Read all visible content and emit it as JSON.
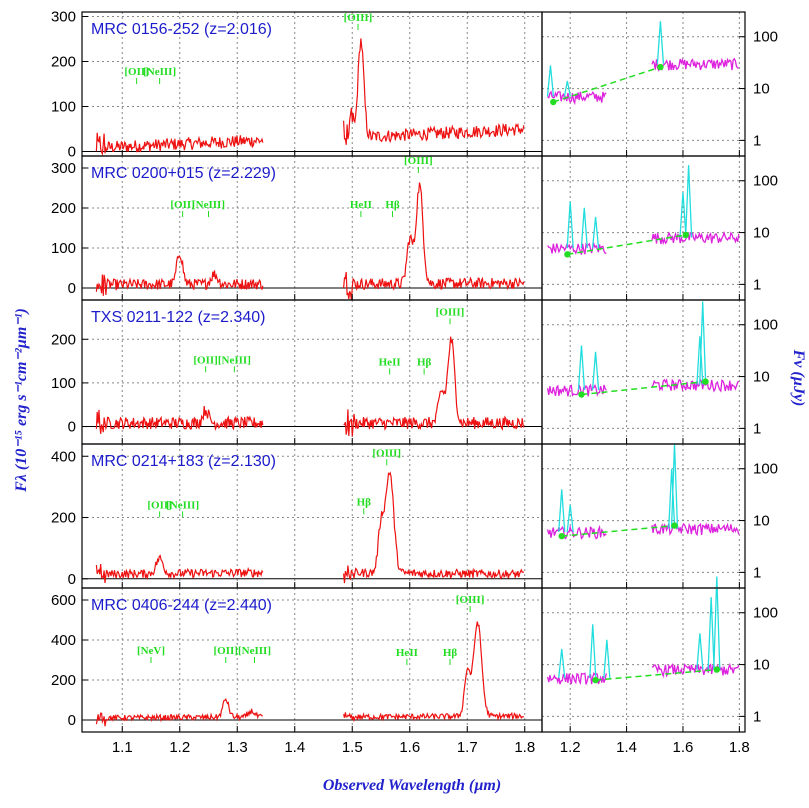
{
  "chart_data": {
    "type": "line",
    "xlabel": "Observed Wavelength (µm)",
    "ylabel_left": "Fλ (10⁻¹⁵ erg s⁻¹cm⁻²µm⁻¹)",
    "ylabel_right": "Fν (µJy)",
    "spectrum_color": "#ee1111",
    "line_label_color": "#22dd22",
    "title_color": "#1c1ccc",
    "sed_colors": {
      "continuum": "#dd22dd",
      "lines": "#22dddd",
      "points": "#22dd22",
      "fit": "#22dd22"
    },
    "main_x_ticks": [
      "1.1",
      "1.2",
      "1.3",
      "1.4",
      "1.5",
      "1.6",
      "1.7",
      "1.8"
    ],
    "sed_x_ticks": [
      "1.2",
      "1.4",
      "1.6",
      "1.8"
    ],
    "sed_y_ticks": [
      "1",
      "10",
      "100"
    ],
    "main_xlim": [
      1.03,
      1.83
    ],
    "sed_xlim": [
      1.1,
      1.82
    ],
    "sed_ylog": true,
    "grid": true,
    "panels": [
      {
        "name": "MRC 0156-252  (z=2.016)",
        "z": 2.016,
        "ylim": [
          -10,
          310
        ],
        "yticks": [
          "0",
          "100",
          "200",
          "300"
        ],
        "lines": [
          {
            "label": "[OII]",
            "x": 1.125,
            "y": 170
          },
          {
            "label": "[NeIII]",
            "x": 1.165,
            "y": 170
          },
          {
            "label": "[OIII]",
            "x": 1.51,
            "y": 290
          }
        ],
        "peaks": [
          {
            "x": 1.515,
            "height": 215,
            "width": 0.005
          },
          {
            "x": 1.498,
            "height": 30,
            "width": 0.004
          }
        ],
        "continuum": [
          {
            "x0": 1.055,
            "x1": 1.345,
            "y0": 8,
            "y1": 25
          },
          {
            "x0": 1.485,
            "x1": 1.8,
            "y0": 30,
            "y1": 50
          }
        ],
        "sed": {
          "fit": [
            [
              1.14,
              5.5
            ],
            [
              1.52,
              26
            ]
          ],
          "points": [
            [
              1.14,
              5.5
            ],
            [
              1.52,
              26
            ]
          ],
          "seg1": [
            1.12,
            1.33
          ],
          "seg2": [
            1.49,
            1.8
          ],
          "level1": 7,
          "level2": 30,
          "lines": [
            [
              1.13,
              28
            ],
            [
              1.19,
              14
            ],
            [
              1.52,
              200
            ]
          ]
        }
      },
      {
        "name": "MRC 0200+015  (z=2.229)",
        "z": 2.229,
        "ylim": [
          -30,
          330
        ],
        "yticks": [
          "0",
          "100",
          "200",
          "300"
        ],
        "lines": [
          {
            "label": "[OII]",
            "x": 1.205,
            "y": 200
          },
          {
            "label": "[NeIII]",
            "x": 1.25,
            "y": 200
          },
          {
            "label": "HeII",
            "x": 1.515,
            "y": 200
          },
          {
            "label": "Hβ",
            "x": 1.57,
            "y": 200
          },
          {
            "label": "[OIII]",
            "x": 1.615,
            "y": 310
          }
        ],
        "peaks": [
          {
            "x": 1.2,
            "height": 80,
            "width": 0.005
          },
          {
            "x": 1.26,
            "height": 25,
            "width": 0.006
          },
          {
            "x": 1.6,
            "height": 110,
            "width": 0.005
          },
          {
            "x": 1.617,
            "height": 245,
            "width": 0.006
          }
        ],
        "continuum": [
          {
            "x0": 1.055,
            "x1": 1.345,
            "y0": 8,
            "y1": 10
          },
          {
            "x0": 1.485,
            "x1": 1.8,
            "y0": 10,
            "y1": 12
          }
        ],
        "sed": {
          "fit": [
            [
              1.19,
              3.8
            ],
            [
              1.61,
              9
            ]
          ],
          "points": [
            [
              1.19,
              3.8
            ],
            [
              1.61,
              9
            ]
          ],
          "seg1": [
            1.12,
            1.33
          ],
          "seg2": [
            1.49,
            1.8
          ],
          "level1": 5,
          "level2": 8,
          "lines": [
            [
              1.2,
              40
            ],
            [
              1.25,
              30
            ],
            [
              1.29,
              20
            ],
            [
              1.6,
              60
            ],
            [
              1.62,
              200
            ]
          ]
        }
      },
      {
        "name": "TXS 0211-122  (z=2.340)",
        "z": 2.34,
        "ylim": [
          -40,
          290
        ],
        "yticks": [
          "0",
          "100",
          "200"
        ],
        "lines": [
          {
            "label": "[OII]",
            "x": 1.245,
            "y": 145
          },
          {
            "label": "[NeIII]",
            "x": 1.295,
            "y": 145
          },
          {
            "label": "HeII",
            "x": 1.565,
            "y": 140
          },
          {
            "label": "Hβ",
            "x": 1.625,
            "y": 140
          },
          {
            "label": "[OIII]",
            "x": 1.67,
            "y": 255
          }
        ],
        "peaks": [
          {
            "x": 1.245,
            "height": 30,
            "width": 0.005
          },
          {
            "x": 1.655,
            "height": 70,
            "width": 0.005
          },
          {
            "x": 1.672,
            "height": 190,
            "width": 0.006
          }
        ],
        "continuum": [
          {
            "x0": 1.055,
            "x1": 1.345,
            "y0": 8,
            "y1": 8
          },
          {
            "x0": 1.485,
            "x1": 1.8,
            "y0": 8,
            "y1": 8
          }
        ],
        "sed": {
          "fit": [
            [
              1.24,
              4.5
            ],
            [
              1.68,
              8
            ]
          ],
          "points": [
            [
              1.24,
              4.5
            ],
            [
              1.68,
              8
            ]
          ],
          "seg1": [
            1.12,
            1.33
          ],
          "seg2": [
            1.49,
            1.8
          ],
          "level1": 5.5,
          "level2": 7,
          "lines": [
            [
              1.24,
              40
            ],
            [
              1.29,
              30
            ],
            [
              1.66,
              60
            ],
            [
              1.67,
              280
            ]
          ]
        }
      },
      {
        "name": "MRC 0214+183  (z=2.130)",
        "z": 2.13,
        "ylim": [
          -30,
          440
        ],
        "yticks": [
          "0",
          "200",
          "400"
        ],
        "lines": [
          {
            "label": "[OII]",
            "x": 1.165,
            "y": 230
          },
          {
            "label": "[NeIII]",
            "x": 1.205,
            "y": 230
          },
          {
            "label": "Hβ",
            "x": 1.52,
            "y": 240
          },
          {
            "label": "[OIII]",
            "x": 1.56,
            "y": 400
          }
        ],
        "peaks": [
          {
            "x": 1.165,
            "height": 50,
            "width": 0.006
          },
          {
            "x": 1.55,
            "height": 150,
            "width": 0.005
          },
          {
            "x": 1.565,
            "height": 330,
            "width": 0.007
          }
        ],
        "continuum": [
          {
            "x0": 1.055,
            "x1": 1.345,
            "y0": 15,
            "y1": 20
          },
          {
            "x0": 1.485,
            "x1": 1.8,
            "y0": 20,
            "y1": 15
          }
        ],
        "sed": {
          "fit": [
            [
              1.17,
              5
            ],
            [
              1.57,
              8
            ]
          ],
          "points": [
            [
              1.17,
              5
            ],
            [
              1.57,
              8
            ]
          ],
          "seg1": [
            1.12,
            1.33
          ],
          "seg2": [
            1.49,
            1.8
          ],
          "level1": 6,
          "level2": 7,
          "lines": [
            [
              1.17,
              40
            ],
            [
              1.2,
              20
            ],
            [
              1.56,
              100
            ],
            [
              1.57,
              300
            ]
          ]
        }
      },
      {
        "name": "MRC 0406-244  (z=2.440)",
        "z": 2.44,
        "ylim": [
          -60,
          660
        ],
        "yticks": [
          "0",
          "200",
          "400",
          "600"
        ],
        "lines": [
          {
            "label": "[NeV]",
            "x": 1.15,
            "y": 330
          },
          {
            "label": "[OII]",
            "x": 1.28,
            "y": 330
          },
          {
            "label": "[NeIII]",
            "x": 1.33,
            "y": 330
          },
          {
            "label": "HeII",
            "x": 1.595,
            "y": 320
          },
          {
            "label": "Hβ",
            "x": 1.67,
            "y": 320
          },
          {
            "label": "[OIII]",
            "x": 1.705,
            "y": 585
          }
        ],
        "peaks": [
          {
            "x": 1.28,
            "height": 90,
            "width": 0.005
          },
          {
            "x": 1.325,
            "height": 30,
            "width": 0.005
          },
          {
            "x": 1.7,
            "height": 220,
            "width": 0.005
          },
          {
            "x": 1.718,
            "height": 470,
            "width": 0.007
          }
        ],
        "continuum": [
          {
            "x0": 1.055,
            "x1": 1.345,
            "y0": 10,
            "y1": 15
          },
          {
            "x0": 1.485,
            "x1": 1.8,
            "y0": 15,
            "y1": 20
          }
        ],
        "sed": {
          "fit": [
            [
              1.29,
              5
            ],
            [
              1.72,
              8
            ]
          ],
          "points": [
            [
              1.29,
              5
            ],
            [
              1.72,
              8
            ]
          ],
          "seg1": [
            1.12,
            1.33
          ],
          "seg2": [
            1.49,
            1.8
          ],
          "level1": 5.5,
          "level2": 8,
          "lines": [
            [
              1.17,
              20
            ],
            [
              1.28,
              60
            ],
            [
              1.33,
              30
            ],
            [
              1.66,
              40
            ],
            [
              1.7,
              200
            ],
            [
              1.72,
              500
            ]
          ]
        }
      }
    ]
  }
}
